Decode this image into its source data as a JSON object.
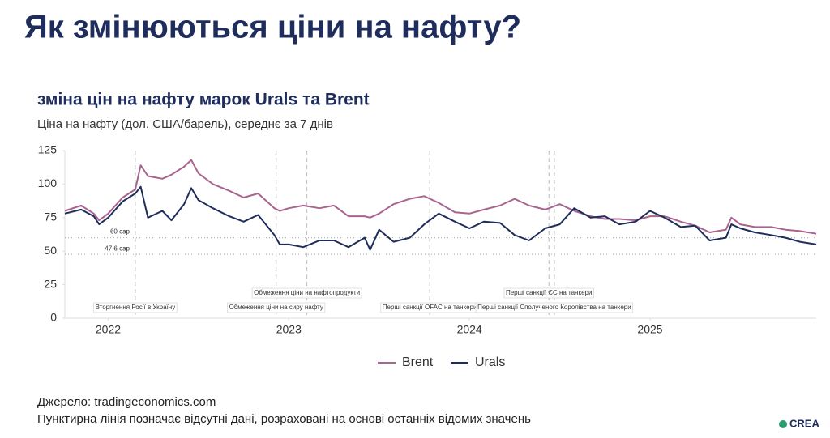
{
  "header": {
    "title": "Як змінюються ціни на нафту?"
  },
  "chart_data": {
    "type": "line",
    "title": "зміна цін на нафту марок Urals та Brent",
    "subtitle": "Ціна на нафту (дол. США/барель), середнє за 7 днів",
    "x": [
      2021.76,
      2021.85,
      2021.92,
      2021.95,
      2022.0,
      2022.08,
      2022.15,
      2022.18,
      2022.22,
      2022.3,
      2022.35,
      2022.42,
      2022.46,
      2022.5,
      2022.58,
      2022.67,
      2022.75,
      2022.83,
      2022.92,
      2022.95,
      2023.0,
      2023.08,
      2023.17,
      2023.25,
      2023.33,
      2023.42,
      2023.45,
      2023.5,
      2023.58,
      2023.67,
      2023.75,
      2023.83,
      2023.92,
      2024.0,
      2024.08,
      2024.17,
      2024.25,
      2024.33,
      2024.42,
      2024.5,
      2024.58,
      2024.67,
      2024.75,
      2024.83,
      2024.92,
      2025.0,
      2025.08,
      2025.17,
      2025.25,
      2025.33,
      2025.42,
      2025.45,
      2025.5,
      2025.58,
      2025.67,
      2025.75,
      2025.83,
      2025.92
    ],
    "series": [
      {
        "name": "Brent",
        "color": "#a8648e",
        "values": [
          80,
          84,
          78,
          73,
          78,
          90,
          96,
          114,
          106,
          104,
          107,
          113,
          118,
          108,
          100,
          95,
          90,
          93,
          82,
          80,
          82,
          84,
          82,
          84,
          76,
          76,
          75,
          78,
          85,
          89,
          91,
          86,
          79,
          78,
          81,
          84,
          89,
          84,
          81,
          85,
          80,
          76,
          74,
          74,
          73,
          76,
          76,
          72,
          69,
          64,
          66,
          75,
          70,
          68,
          68,
          66,
          65,
          63
        ]
      },
      {
        "name": "Urals",
        "color": "#1f2d5c",
        "values": [
          78,
          81,
          76,
          70,
          75,
          87,
          93,
          98,
          75,
          80,
          73,
          85,
          97,
          88,
          82,
          76,
          72,
          77,
          62,
          55,
          55,
          53,
          58,
          58,
          53,
          60,
          51,
          66,
          57,
          60,
          70,
          78,
          72,
          67,
          72,
          71,
          62,
          58,
          67,
          70,
          82,
          75,
          76,
          70,
          72,
          80,
          75,
          68,
          69,
          58,
          60,
          70,
          67,
          64,
          62,
          60,
          57,
          55
        ]
      }
    ],
    "xlim": [
      2021.76,
      2025.92
    ],
    "xticks": [
      2022,
      2023,
      2024,
      2025
    ],
    "ylim": [
      0,
      125
    ],
    "yticks": [
      0,
      25,
      50,
      75,
      100,
      125
    ],
    "grid": false,
    "legend": "bottom",
    "reference_lines": [
      {
        "value": 60,
        "label": "60 cap"
      },
      {
        "value": 47.6,
        "label": "47.6 cap"
      }
    ],
    "annotations": [
      {
        "x": 2022.15,
        "label": "Вторгнення Росії в Україну",
        "row": 1
      },
      {
        "x": 2022.93,
        "label": "Обмеження ціни на сиру нафту",
        "row": 1
      },
      {
        "x": 2023.1,
        "label": "Обмеження ціни на нафтопродукти",
        "row": 2
      },
      {
        "x": 2023.78,
        "label": "Перші санкції OFAC на танкери",
        "row": 1
      },
      {
        "x": 2024.47,
        "label": "Перші санкції Сполученого Королівства на танкери",
        "row": 1
      },
      {
        "x": 2024.44,
        "label": "Перші санкції ЄС на танкери",
        "row": 2
      }
    ]
  },
  "footer": {
    "source": "Джерело: tradingeconomics.com",
    "note": "Пунктирна лінія позначає відсутні дані, розраховані на основі останніх відомих значень",
    "logo": "CREA"
  }
}
